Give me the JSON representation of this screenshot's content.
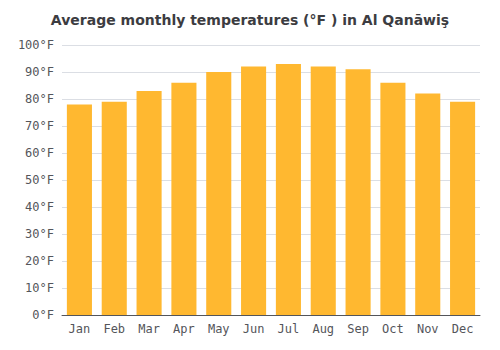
{
  "chart_data": {
    "type": "bar",
    "title": "Average monthly temperatures (°F ) in Al Qanāwiş",
    "categories": [
      "Jan",
      "Feb",
      "Mar",
      "Apr",
      "May",
      "Jun",
      "Jul",
      "Aug",
      "Sep",
      "Oct",
      "Nov",
      "Dec"
    ],
    "values": [
      78,
      79,
      83,
      86,
      90,
      92,
      93,
      92,
      91,
      86,
      82,
      79
    ],
    "color": "#FFB830",
    "ylim": [
      0,
      100
    ],
    "yticks": [
      {
        "value": 0,
        "label": "0°F"
      },
      {
        "value": 10,
        "label": "10°F"
      },
      {
        "value": 20,
        "label": "20°F"
      },
      {
        "value": 30,
        "label": "30°F"
      },
      {
        "value": 40,
        "label": "40°F"
      },
      {
        "value": 50,
        "label": "50°F"
      },
      {
        "value": 60,
        "label": "60°F"
      },
      {
        "value": 70,
        "label": "70°F"
      },
      {
        "value": 80,
        "label": "80°F"
      },
      {
        "value": 90,
        "label": "90°F"
      },
      {
        "value": 100,
        "label": "100°F"
      }
    ],
    "grid": true
  }
}
